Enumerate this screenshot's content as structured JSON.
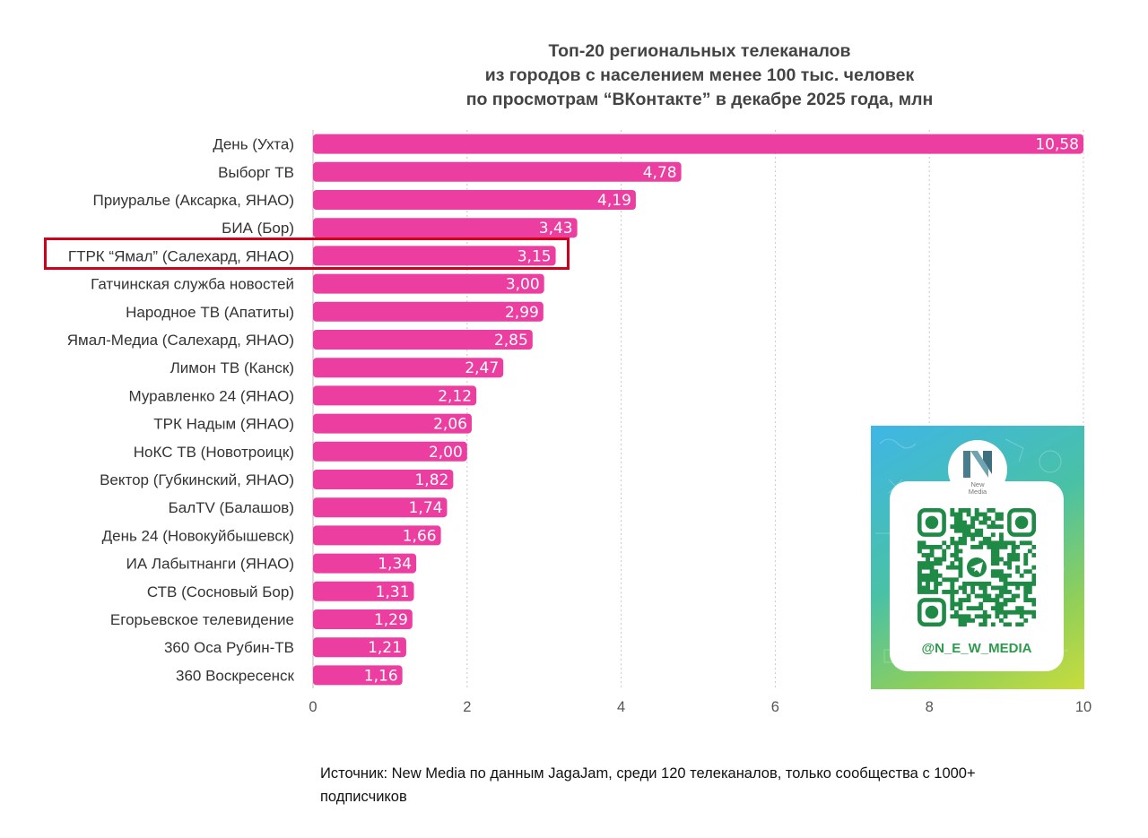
{
  "chart_data": {
    "type": "bar",
    "orientation": "horizontal",
    "title_lines": [
      "Топ-20 региональных телеканалов",
      "из городов с населением менее 100 тыс. человек",
      "по просмотрам “ВКонтакте” в декабре 2025 года, млн"
    ],
    "categories": [
      "День (Ухта)",
      "Выборг ТВ",
      "Приуралье (Аксарка, ЯНАО)",
      "БИА (Бор)",
      "ГТРК “Ямал” (Салехард, ЯНАО)",
      "Гатчинская служба новостей",
      "Народное ТВ (Апатиты)",
      "Ямал-Медиа (Салехард, ЯНАО)",
      "Лимон ТВ (Канск)",
      "Муравленко 24 (ЯНАО)",
      "ТРК Надым (ЯНАО)",
      "НоКС ТВ (Новотроицк)",
      "Вектор (Губкинский, ЯНАО)",
      "БалTV (Балашов)",
      "День 24 (Новокуйбышевск)",
      "ИА Лабытнанги (ЯНАО)",
      "СТВ (Сосновый Бор)",
      "Егорьевское телевидение",
      "360 Оса Рубин-ТВ",
      "360 Воскресенск"
    ],
    "values": [
      10.58,
      4.78,
      4.19,
      3.43,
      3.15,
      3.0,
      2.99,
      2.85,
      2.47,
      2.12,
      2.06,
      2.0,
      1.82,
      1.74,
      1.66,
      1.34,
      1.31,
      1.29,
      1.21,
      1.16
    ],
    "value_labels": [
      "10,58",
      "4,78",
      "4,19",
      "3,43",
      "3,15",
      "3,00",
      "2,99",
      "2,85",
      "2,47",
      "2,12",
      "2,06",
      "2,00",
      "1,82",
      "1,74",
      "1,66",
      "1,34",
      "1,31",
      "1,29",
      "1,21",
      "1,16"
    ],
    "xlim": [
      0,
      10
    ],
    "x_ticks": [
      0,
      2,
      4,
      6,
      8,
      10
    ],
    "x_tick_labels": [
      "0",
      "2",
      "4",
      "6",
      "8",
      "10"
    ],
    "xlabel": "",
    "ylabel": "",
    "grid": "vertical dotted",
    "legend": "none",
    "highlighted_category": "ГТРК “Ямал” (Салехард, ЯНАО)",
    "colors": {
      "bar": "#ec3ea0",
      "highlight_box": "#d0021b",
      "grid": "#c8c8c8"
    }
  },
  "promo": {
    "logo_text_line1": "New",
    "logo_text_line2": "Media",
    "handle": "@N_E_W_MEDIA",
    "icon": "qr-code-icon",
    "colors": {
      "qr": "#1e8a45",
      "gradient_start": "#3fb6e6",
      "gradient_end": "#c9dc3c"
    }
  },
  "source": {
    "text": "Источник: New Media по данным JagaJam, среди 120 телеканалов, только сообщества с 1000+ подписчиков"
  }
}
